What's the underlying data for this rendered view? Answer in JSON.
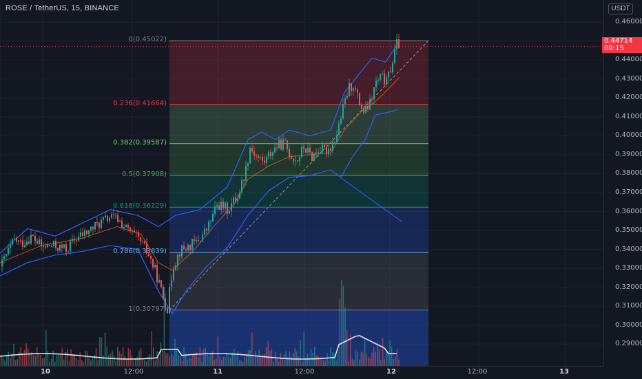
{
  "header": {
    "title": "ROSE / TetherUS, 15, BINANCE"
  },
  "price_axis": {
    "unit": "USDT",
    "ticks": [
      "0.46000",
      "0.45000",
      "0.44000",
      "0.43000",
      "0.42000",
      "0.41000",
      "0.40000",
      "0.39000",
      "0.38000",
      "0.37000",
      "0.36000",
      "0.35000",
      "0.34000",
      "0.33000",
      "0.32000",
      "0.31000",
      "0.30000",
      "0.29000"
    ],
    "current_price": "0.44714",
    "countdown": "00:15",
    "current_color": "#f23645"
  },
  "time_axis": {
    "ticks": [
      {
        "label": "10",
        "bold": true
      },
      {
        "label": "12:00",
        "bold": false
      },
      {
        "label": "11",
        "bold": true
      },
      {
        "label": "12:00",
        "bold": false
      },
      {
        "label": "12",
        "bold": true
      },
      {
        "label": "12:00",
        "bold": false
      },
      {
        "label": "13",
        "bold": true
      }
    ]
  },
  "chart_data": {
    "type": "candlestick",
    "symbol": "ROSE / TetherUS",
    "timeframe": "15",
    "exchange": "BINANCE",
    "ylim": [
      0.285,
      0.463
    ],
    "x_labels": [
      "10",
      "12:00",
      "11",
      "12:00",
      "12",
      "12:00",
      "13"
    ],
    "price_path": [
      [
        0,
        0.331
      ],
      [
        8,
        0.337
      ],
      [
        20,
        0.345
      ],
      [
        30,
        0.343
      ],
      [
        45,
        0.347
      ],
      [
        60,
        0.341
      ],
      [
        75,
        0.342
      ],
      [
        95,
        0.34
      ],
      [
        110,
        0.346
      ],
      [
        125,
        0.349
      ],
      [
        140,
        0.353
      ],
      [
        158,
        0.357
      ],
      [
        170,
        0.356
      ],
      [
        182,
        0.351
      ],
      [
        195,
        0.347
      ],
      [
        205,
        0.343
      ],
      [
        215,
        0.337
      ],
      [
        225,
        0.328
      ],
      [
        235,
        0.316
      ],
      [
        242,
        0.309
      ],
      [
        250,
        0.331
      ],
      [
        260,
        0.339
      ],
      [
        270,
        0.341
      ],
      [
        285,
        0.344
      ],
      [
        300,
        0.351
      ],
      [
        315,
        0.364
      ],
      [
        330,
        0.361
      ],
      [
        345,
        0.369
      ],
      [
        355,
        0.381
      ],
      [
        362,
        0.394
      ],
      [
        372,
        0.389
      ],
      [
        382,
        0.386
      ],
      [
        392,
        0.391
      ],
      [
        402,
        0.395
      ],
      [
        412,
        0.396
      ],
      [
        420,
        0.39
      ],
      [
        430,
        0.387
      ],
      [
        440,
        0.394
      ],
      [
        452,
        0.389
      ],
      [
        462,
        0.393
      ],
      [
        472,
        0.392
      ],
      [
        480,
        0.395
      ],
      [
        488,
        0.401
      ],
      [
        496,
        0.413
      ],
      [
        505,
        0.425
      ],
      [
        512,
        0.427
      ],
      [
        520,
        0.418
      ],
      [
        528,
        0.412
      ],
      [
        536,
        0.417
      ],
      [
        545,
        0.428
      ],
      [
        553,
        0.431
      ],
      [
        560,
        0.428
      ],
      [
        568,
        0.438
      ],
      [
        576,
        0.45
      ],
      [
        580,
        0.447
      ]
    ],
    "bollinger": {
      "upper": [
        [
          0,
          0.338
        ],
        [
          40,
          0.351
        ],
        [
          80,
          0.347
        ],
        [
          120,
          0.354
        ],
        [
          160,
          0.361
        ],
        [
          200,
          0.358
        ],
        [
          230,
          0.352
        ],
        [
          255,
          0.358
        ],
        [
          290,
          0.361
        ],
        [
          330,
          0.373
        ],
        [
          360,
          0.398
        ],
        [
          380,
          0.402
        ],
        [
          400,
          0.398
        ],
        [
          420,
          0.403
        ],
        [
          450,
          0.4
        ],
        [
          480,
          0.403
        ],
        [
          500,
          0.423
        ],
        [
          520,
          0.432
        ],
        [
          540,
          0.441
        ],
        [
          560,
          0.439
        ],
        [
          578,
          0.449
        ]
      ],
      "basis": [
        [
          0,
          0.333
        ],
        [
          60,
          0.342
        ],
        [
          120,
          0.346
        ],
        [
          170,
          0.352
        ],
        [
          205,
          0.348
        ],
        [
          230,
          0.333
        ],
        [
          250,
          0.329
        ],
        [
          280,
          0.339
        ],
        [
          310,
          0.352
        ],
        [
          340,
          0.364
        ],
        [
          360,
          0.377
        ],
        [
          390,
          0.384
        ],
        [
          420,
          0.389
        ],
        [
          450,
          0.39
        ],
        [
          480,
          0.391
        ],
        [
          500,
          0.403
        ],
        [
          525,
          0.413
        ],
        [
          545,
          0.418
        ],
        [
          570,
          0.427
        ],
        [
          580,
          0.431
        ]
      ],
      "lower": [
        [
          0,
          0.326
        ],
        [
          40,
          0.333
        ],
        [
          80,
          0.337
        ],
        [
          120,
          0.339
        ],
        [
          160,
          0.342
        ],
        [
          200,
          0.34
        ],
        [
          230,
          0.318
        ],
        [
          250,
          0.306
        ],
        [
          270,
          0.318
        ],
        [
          300,
          0.331
        ],
        [
          330,
          0.341
        ],
        [
          360,
          0.358
        ],
        [
          390,
          0.371
        ],
        [
          420,
          0.378
        ],
        [
          450,
          0.379
        ],
        [
          480,
          0.382
        ],
        [
          495,
          0.378
        ],
        [
          510,
          0.388
        ],
        [
          530,
          0.398
        ],
        [
          545,
          0.411
        ],
        [
          570,
          0.413
        ],
        [
          578,
          0.414
        ]
      ]
    },
    "fibonacci_retracement": {
      "price_0": 0.45022,
      "price_1": 0.30797,
      "levels": [
        {
          "label": "0(0.45022)",
          "ratio": 0,
          "price": 0.45022,
          "color": "#787b86"
        },
        {
          "label": "0.236(0.41664)",
          "ratio": 0.236,
          "price": 0.41664,
          "color": "#f23645"
        },
        {
          "label": "0.382(0.39587)",
          "ratio": 0.382,
          "price": 0.39587,
          "color": "#81c784"
        },
        {
          "label": "0.5(0.37908)",
          "ratio": 0.5,
          "price": 0.37908,
          "color": "#4caf50"
        },
        {
          "label": "0.618(0.36229)",
          "ratio": 0.618,
          "price": 0.36229,
          "color": "#089981"
        },
        {
          "label": "0.786(0.33839)",
          "ratio": 0.786,
          "price": 0.33839,
          "color": "#64b5f6"
        },
        {
          "label": "1(0.30797)",
          "ratio": 1,
          "price": 0.30797,
          "color": "#787b86"
        }
      ],
      "fill_colors": [
        "#f23645",
        "#81c784",
        "#4caf50",
        "#089981",
        "#2962ff",
        "#787b86",
        "#2962ff"
      ]
    },
    "colors": {
      "up": "#26a69a",
      "down": "#ef5350",
      "bollinger": "#2962ff",
      "basis": "#ff6d00",
      "volume_ma": "#e0e3eb"
    },
    "volume_spike_x": [
      238,
      492,
      496,
      500
    ]
  }
}
